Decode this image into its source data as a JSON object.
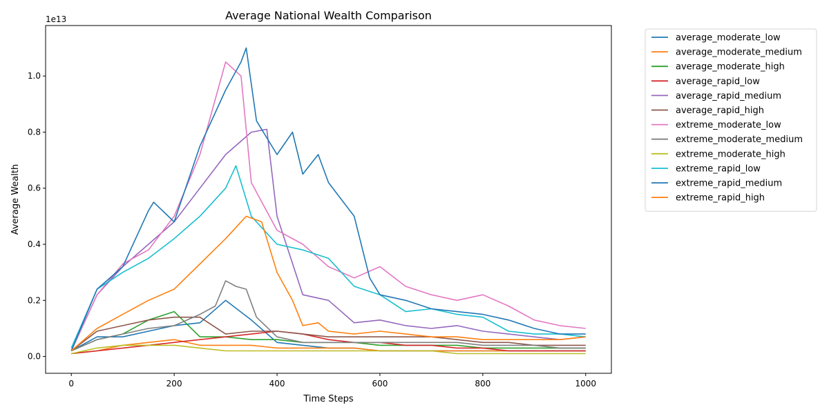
{
  "chart_data": {
    "type": "line",
    "title": "Average National Wealth Comparison",
    "xlabel": "Time Steps",
    "ylabel": "Average Wealth",
    "y_scale_label": "1e13",
    "xlim": [
      -50,
      1050
    ],
    "ylim": [
      -0.06,
      1.18
    ],
    "x_ticks": [
      0,
      200,
      400,
      600,
      800,
      1000
    ],
    "y_ticks": [
      0.0,
      0.2,
      0.4,
      0.6,
      0.8,
      1.0
    ],
    "x_tick_labels": [
      "0",
      "200",
      "400",
      "600",
      "800",
      "1000"
    ],
    "y_tick_labels": [
      "0.0",
      "0.2",
      "0.4",
      "0.6",
      "0.8",
      "1.0"
    ],
    "grid": false,
    "legend_position": "outside-right-top",
    "series": [
      {
        "name": "average_moderate_low",
        "color": "#1f77b4",
        "x": [
          0,
          50,
          100,
          150,
          200,
          250,
          300,
          350,
          400,
          450,
          500,
          550,
          600,
          650,
          700,
          750,
          800,
          850,
          900,
          950,
          1000
        ],
        "y": [
          0.02,
          0.07,
          0.07,
          0.09,
          0.11,
          0.12,
          0.2,
          0.13,
          0.05,
          0.04,
          0.03,
          0.03,
          0.02,
          0.02,
          0.02,
          0.02,
          0.02,
          0.02,
          0.02,
          0.02,
          0.02
        ]
      },
      {
        "name": "average_moderate_medium",
        "color": "#ff7f0e",
        "x": [
          0,
          50,
          100,
          150,
          200,
          250,
          300,
          350,
          400,
          450,
          500,
          550,
          600,
          650,
          700,
          750,
          800,
          850,
          900,
          950,
          1000
        ],
        "y": [
          0.01,
          0.02,
          0.04,
          0.05,
          0.06,
          0.04,
          0.04,
          0.04,
          0.03,
          0.03,
          0.03,
          0.03,
          0.02,
          0.02,
          0.02,
          0.02,
          0.02,
          0.02,
          0.02,
          0.02,
          0.02
        ]
      },
      {
        "name": "average_moderate_high",
        "color": "#2ca02c",
        "x": [
          0,
          50,
          100,
          150,
          200,
          250,
          300,
          350,
          400,
          450,
          500,
          550,
          600,
          650,
          700,
          750,
          800,
          850,
          900,
          950,
          1000
        ],
        "y": [
          0.02,
          0.06,
          0.08,
          0.13,
          0.16,
          0.07,
          0.07,
          0.06,
          0.06,
          0.05,
          0.05,
          0.05,
          0.04,
          0.04,
          0.04,
          0.04,
          0.03,
          0.03,
          0.03,
          0.03,
          0.03
        ]
      },
      {
        "name": "average_rapid_low",
        "color": "#d62728",
        "x": [
          0,
          50,
          100,
          150,
          200,
          250,
          300,
          350,
          400,
          450,
          500,
          550,
          600,
          650,
          700,
          750,
          800,
          850,
          900,
          950,
          1000
        ],
        "y": [
          0.01,
          0.02,
          0.03,
          0.04,
          0.05,
          0.06,
          0.07,
          0.08,
          0.09,
          0.08,
          0.06,
          0.05,
          0.05,
          0.04,
          0.04,
          0.03,
          0.03,
          0.02,
          0.02,
          0.02,
          0.02
        ]
      },
      {
        "name": "average_rapid_medium",
        "color": "#9467bd",
        "x": [
          0,
          50,
          100,
          150,
          200,
          250,
          300,
          350,
          380,
          400,
          450,
          500,
          550,
          600,
          650,
          700,
          750,
          800,
          850,
          900,
          950,
          1000
        ],
        "y": [
          0.02,
          0.22,
          0.32,
          0.4,
          0.48,
          0.6,
          0.72,
          0.8,
          0.81,
          0.5,
          0.22,
          0.2,
          0.12,
          0.13,
          0.11,
          0.1,
          0.11,
          0.09,
          0.08,
          0.07,
          0.06,
          0.07
        ]
      },
      {
        "name": "average_rapid_high",
        "color": "#8c564b",
        "x": [
          0,
          50,
          100,
          150,
          200,
          250,
          300,
          350,
          400,
          450,
          500,
          550,
          600,
          650,
          700,
          750,
          800,
          850,
          900,
          950,
          1000
        ],
        "y": [
          0.02,
          0.09,
          0.11,
          0.13,
          0.14,
          0.14,
          0.08,
          0.09,
          0.09,
          0.08,
          0.07,
          0.07,
          0.07,
          0.07,
          0.07,
          0.06,
          0.05,
          0.05,
          0.04,
          0.04,
          0.04
        ]
      },
      {
        "name": "extreme_moderate_low",
        "color": "#e377c2",
        "x": [
          0,
          50,
          100,
          150,
          200,
          250,
          300,
          330,
          350,
          400,
          450,
          500,
          550,
          600,
          650,
          700,
          750,
          800,
          850,
          900,
          950,
          1000
        ],
        "y": [
          0.02,
          0.22,
          0.33,
          0.38,
          0.5,
          0.72,
          1.05,
          1.0,
          0.62,
          0.45,
          0.4,
          0.32,
          0.28,
          0.32,
          0.25,
          0.22,
          0.2,
          0.22,
          0.18,
          0.13,
          0.11,
          0.1
        ]
      },
      {
        "name": "extreme_moderate_medium",
        "color": "#7f7f7f",
        "x": [
          0,
          50,
          100,
          150,
          200,
          250,
          280,
          300,
          320,
          340,
          360,
          400,
          450,
          500,
          550,
          600,
          650,
          700,
          750,
          800,
          850,
          900,
          950,
          1000
        ],
        "y": [
          0.02,
          0.06,
          0.08,
          0.1,
          0.11,
          0.15,
          0.18,
          0.27,
          0.25,
          0.24,
          0.14,
          0.07,
          0.05,
          0.05,
          0.05,
          0.05,
          0.05,
          0.05,
          0.05,
          0.04,
          0.04,
          0.04,
          0.03,
          0.03
        ]
      },
      {
        "name": "extreme_moderate_high",
        "color": "#bcbd22",
        "x": [
          0,
          50,
          100,
          150,
          200,
          250,
          300,
          350,
          400,
          450,
          500,
          550,
          600,
          650,
          700,
          750,
          800,
          850,
          900,
          950,
          1000
        ],
        "y": [
          0.01,
          0.03,
          0.04,
          0.04,
          0.04,
          0.03,
          0.02,
          0.02,
          0.02,
          0.02,
          0.02,
          0.02,
          0.02,
          0.02,
          0.02,
          0.01,
          0.01,
          0.01,
          0.01,
          0.01,
          0.01
        ]
      },
      {
        "name": "extreme_rapid_low",
        "color": "#17becf",
        "x": [
          0,
          50,
          100,
          150,
          200,
          250,
          300,
          320,
          350,
          400,
          450,
          500,
          550,
          600,
          650,
          700,
          750,
          800,
          850,
          900,
          950,
          1000
        ],
        "y": [
          0.03,
          0.24,
          0.3,
          0.35,
          0.42,
          0.5,
          0.6,
          0.68,
          0.5,
          0.4,
          0.38,
          0.35,
          0.25,
          0.22,
          0.16,
          0.17,
          0.15,
          0.14,
          0.09,
          0.08,
          0.08,
          0.07
        ]
      },
      {
        "name": "extreme_rapid_medium",
        "color": "#1f77b4",
        "x": [
          0,
          50,
          100,
          150,
          160,
          200,
          250,
          300,
          330,
          340,
          360,
          400,
          430,
          450,
          480,
          500,
          550,
          580,
          600,
          650,
          700,
          750,
          800,
          850,
          900,
          950,
          1000
        ],
        "y": [
          0.02,
          0.24,
          0.32,
          0.52,
          0.55,
          0.48,
          0.75,
          0.95,
          1.05,
          1.1,
          0.84,
          0.72,
          0.8,
          0.65,
          0.72,
          0.62,
          0.5,
          0.28,
          0.22,
          0.2,
          0.17,
          0.16,
          0.15,
          0.13,
          0.1,
          0.08,
          0.08
        ]
      },
      {
        "name": "extreme_rapid_high",
        "color": "#ff7f0e",
        "x": [
          0,
          50,
          100,
          150,
          200,
          250,
          300,
          340,
          370,
          400,
          430,
          450,
          480,
          500,
          550,
          600,
          650,
          700,
          750,
          800,
          850,
          900,
          950,
          1000
        ],
        "y": [
          0.02,
          0.1,
          0.15,
          0.2,
          0.24,
          0.33,
          0.42,
          0.5,
          0.48,
          0.3,
          0.2,
          0.11,
          0.12,
          0.09,
          0.08,
          0.09,
          0.08,
          0.07,
          0.07,
          0.06,
          0.06,
          0.06,
          0.06,
          0.07
        ]
      }
    ]
  }
}
